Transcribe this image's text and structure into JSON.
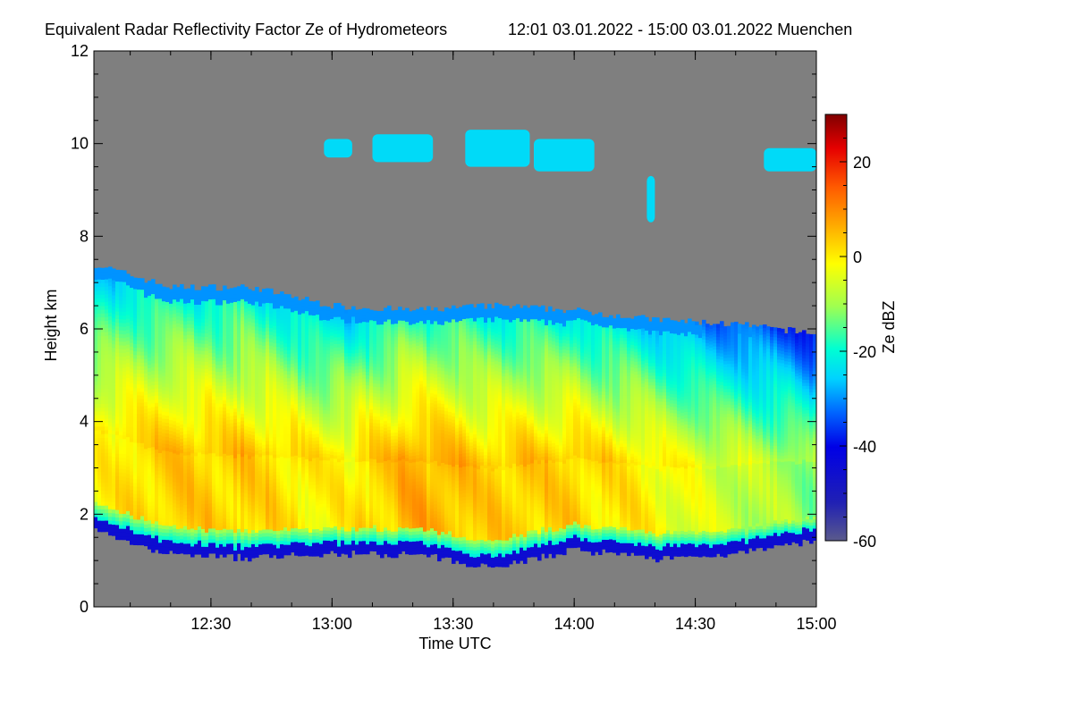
{
  "chart_data": {
    "type": "heatmap",
    "title": "Equivalent Radar Reflectivity Factor Ze of Hydrometeors",
    "time_range_label": "12:01 03.01.2022 - 15:00 03.01.2022 Muenchen",
    "xlabel": "Time UTC",
    "ylabel": "Height km",
    "colorbar_label": "Ze dBZ",
    "x_range": [
      "12:01",
      "15:00"
    ],
    "x_ticks": [
      "12:30",
      "13:00",
      "13:30",
      "14:00",
      "14:30",
      "15:00"
    ],
    "ylim": [
      0,
      12
    ],
    "y_ticks": [
      "0",
      "2",
      "4",
      "6",
      "8",
      "10",
      "12"
    ],
    "zlim": [
      -60,
      30
    ],
    "colorbar_ticks": [
      "-60",
      "-40",
      "-20",
      "0",
      "20"
    ],
    "colorscale": [
      "#5a5a8c",
      "#0000c8",
      "#0050ff",
      "#00c8ff",
      "#00ffd2",
      "#90ff50",
      "#ffff00",
      "#ffaa00",
      "#ff6400",
      "#ff0000",
      "#b40000",
      "#800000"
    ],
    "background_color": "#7f7f7f",
    "cloud_profile": {
      "times_min_after_1200": [
        1,
        20,
        40,
        60,
        80,
        100,
        120,
        140,
        160,
        180
      ],
      "cloud_top_km": [
        7.4,
        6.9,
        6.9,
        6.5,
        6.4,
        6.5,
        6.4,
        6.2,
        6.1,
        5.9
      ],
      "cloud_base_km": [
        1.9,
        1.4,
        1.3,
        1.4,
        1.4,
        1.1,
        1.5,
        1.3,
        1.4,
        1.7
      ],
      "peak_ze_dbz": [
        0,
        5,
        5,
        0,
        8,
        5,
        5,
        0,
        -5,
        -10
      ]
    }
  }
}
